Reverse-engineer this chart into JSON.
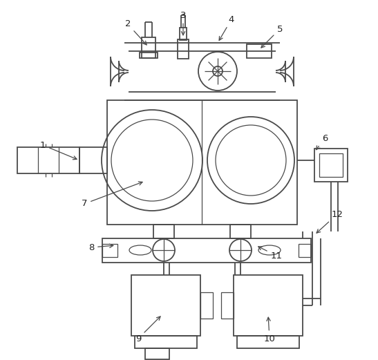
{
  "bg_color": "#ffffff",
  "line_color": "#4a4a4a",
  "lw": 1.3,
  "tlw": 0.9,
  "fig_width": 5.47,
  "fig_height": 5.21,
  "dpi": 100
}
